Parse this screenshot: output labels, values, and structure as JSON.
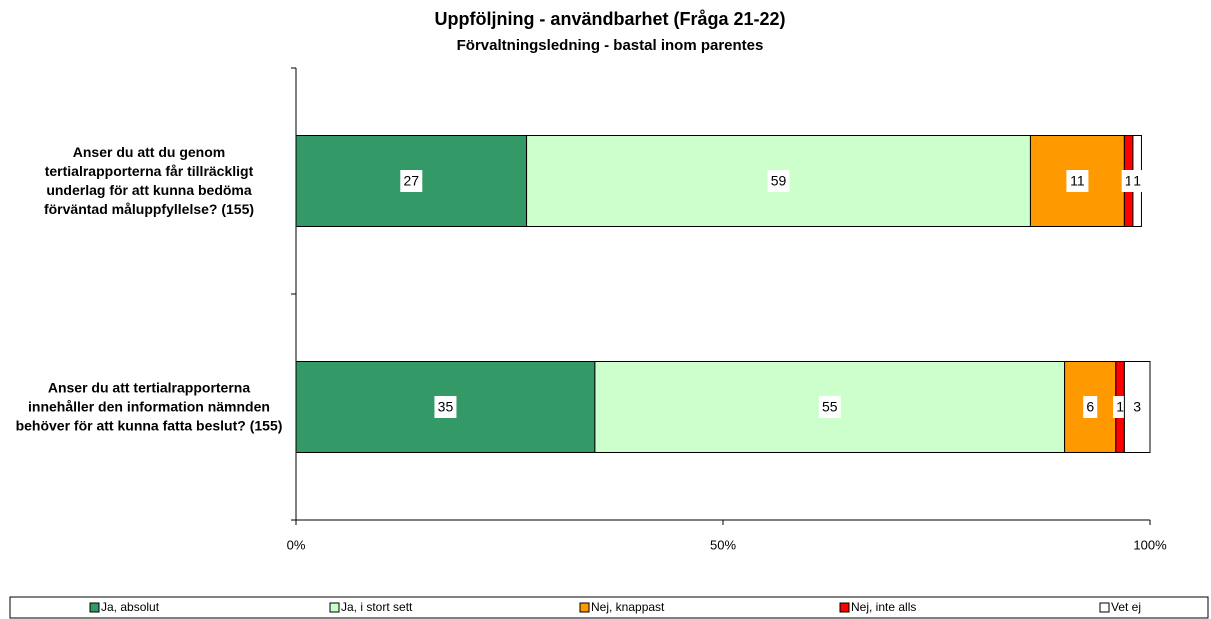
{
  "chart_data": {
    "type": "bar",
    "orientation": "horizontal",
    "stacked": true,
    "title": "Uppföljning - användbarhet (Fråga 21-22)",
    "subtitle": "Förvaltningsledning - bastal inom parentes",
    "categories": [
      "Anser du att du genom tertialrapporterna får tillräckligt underlag för att kunna bedöma förväntad måluppfyllelse? (155)",
      "Anser du att tertialrapporterna innehåller den information nämnden behöver för att kunna fatta beslut? (155)"
    ],
    "series": [
      {
        "name": "Ja, absolut",
        "color": "#339966",
        "values": [
          27,
          35
        ]
      },
      {
        "name": "Ja, i stort sett",
        "color": "#ccffcc",
        "values": [
          59,
          55
        ]
      },
      {
        "name": "Nej, knappast",
        "color": "#ff9900",
        "values": [
          11,
          6
        ]
      },
      {
        "name": "Nej, inte alls",
        "color": "#ff0000",
        "values": [
          1,
          1
        ]
      },
      {
        "name": "Vet ej",
        "color": "#ffffff",
        "values": [
          1,
          3
        ]
      }
    ],
    "xlim": [
      0,
      100
    ],
    "xticks": [
      {
        "value": 0,
        "label": "0%"
      },
      {
        "value": 50,
        "label": "50%"
      },
      {
        "value": 100,
        "label": "100%"
      }
    ],
    "legend": "bottom"
  }
}
